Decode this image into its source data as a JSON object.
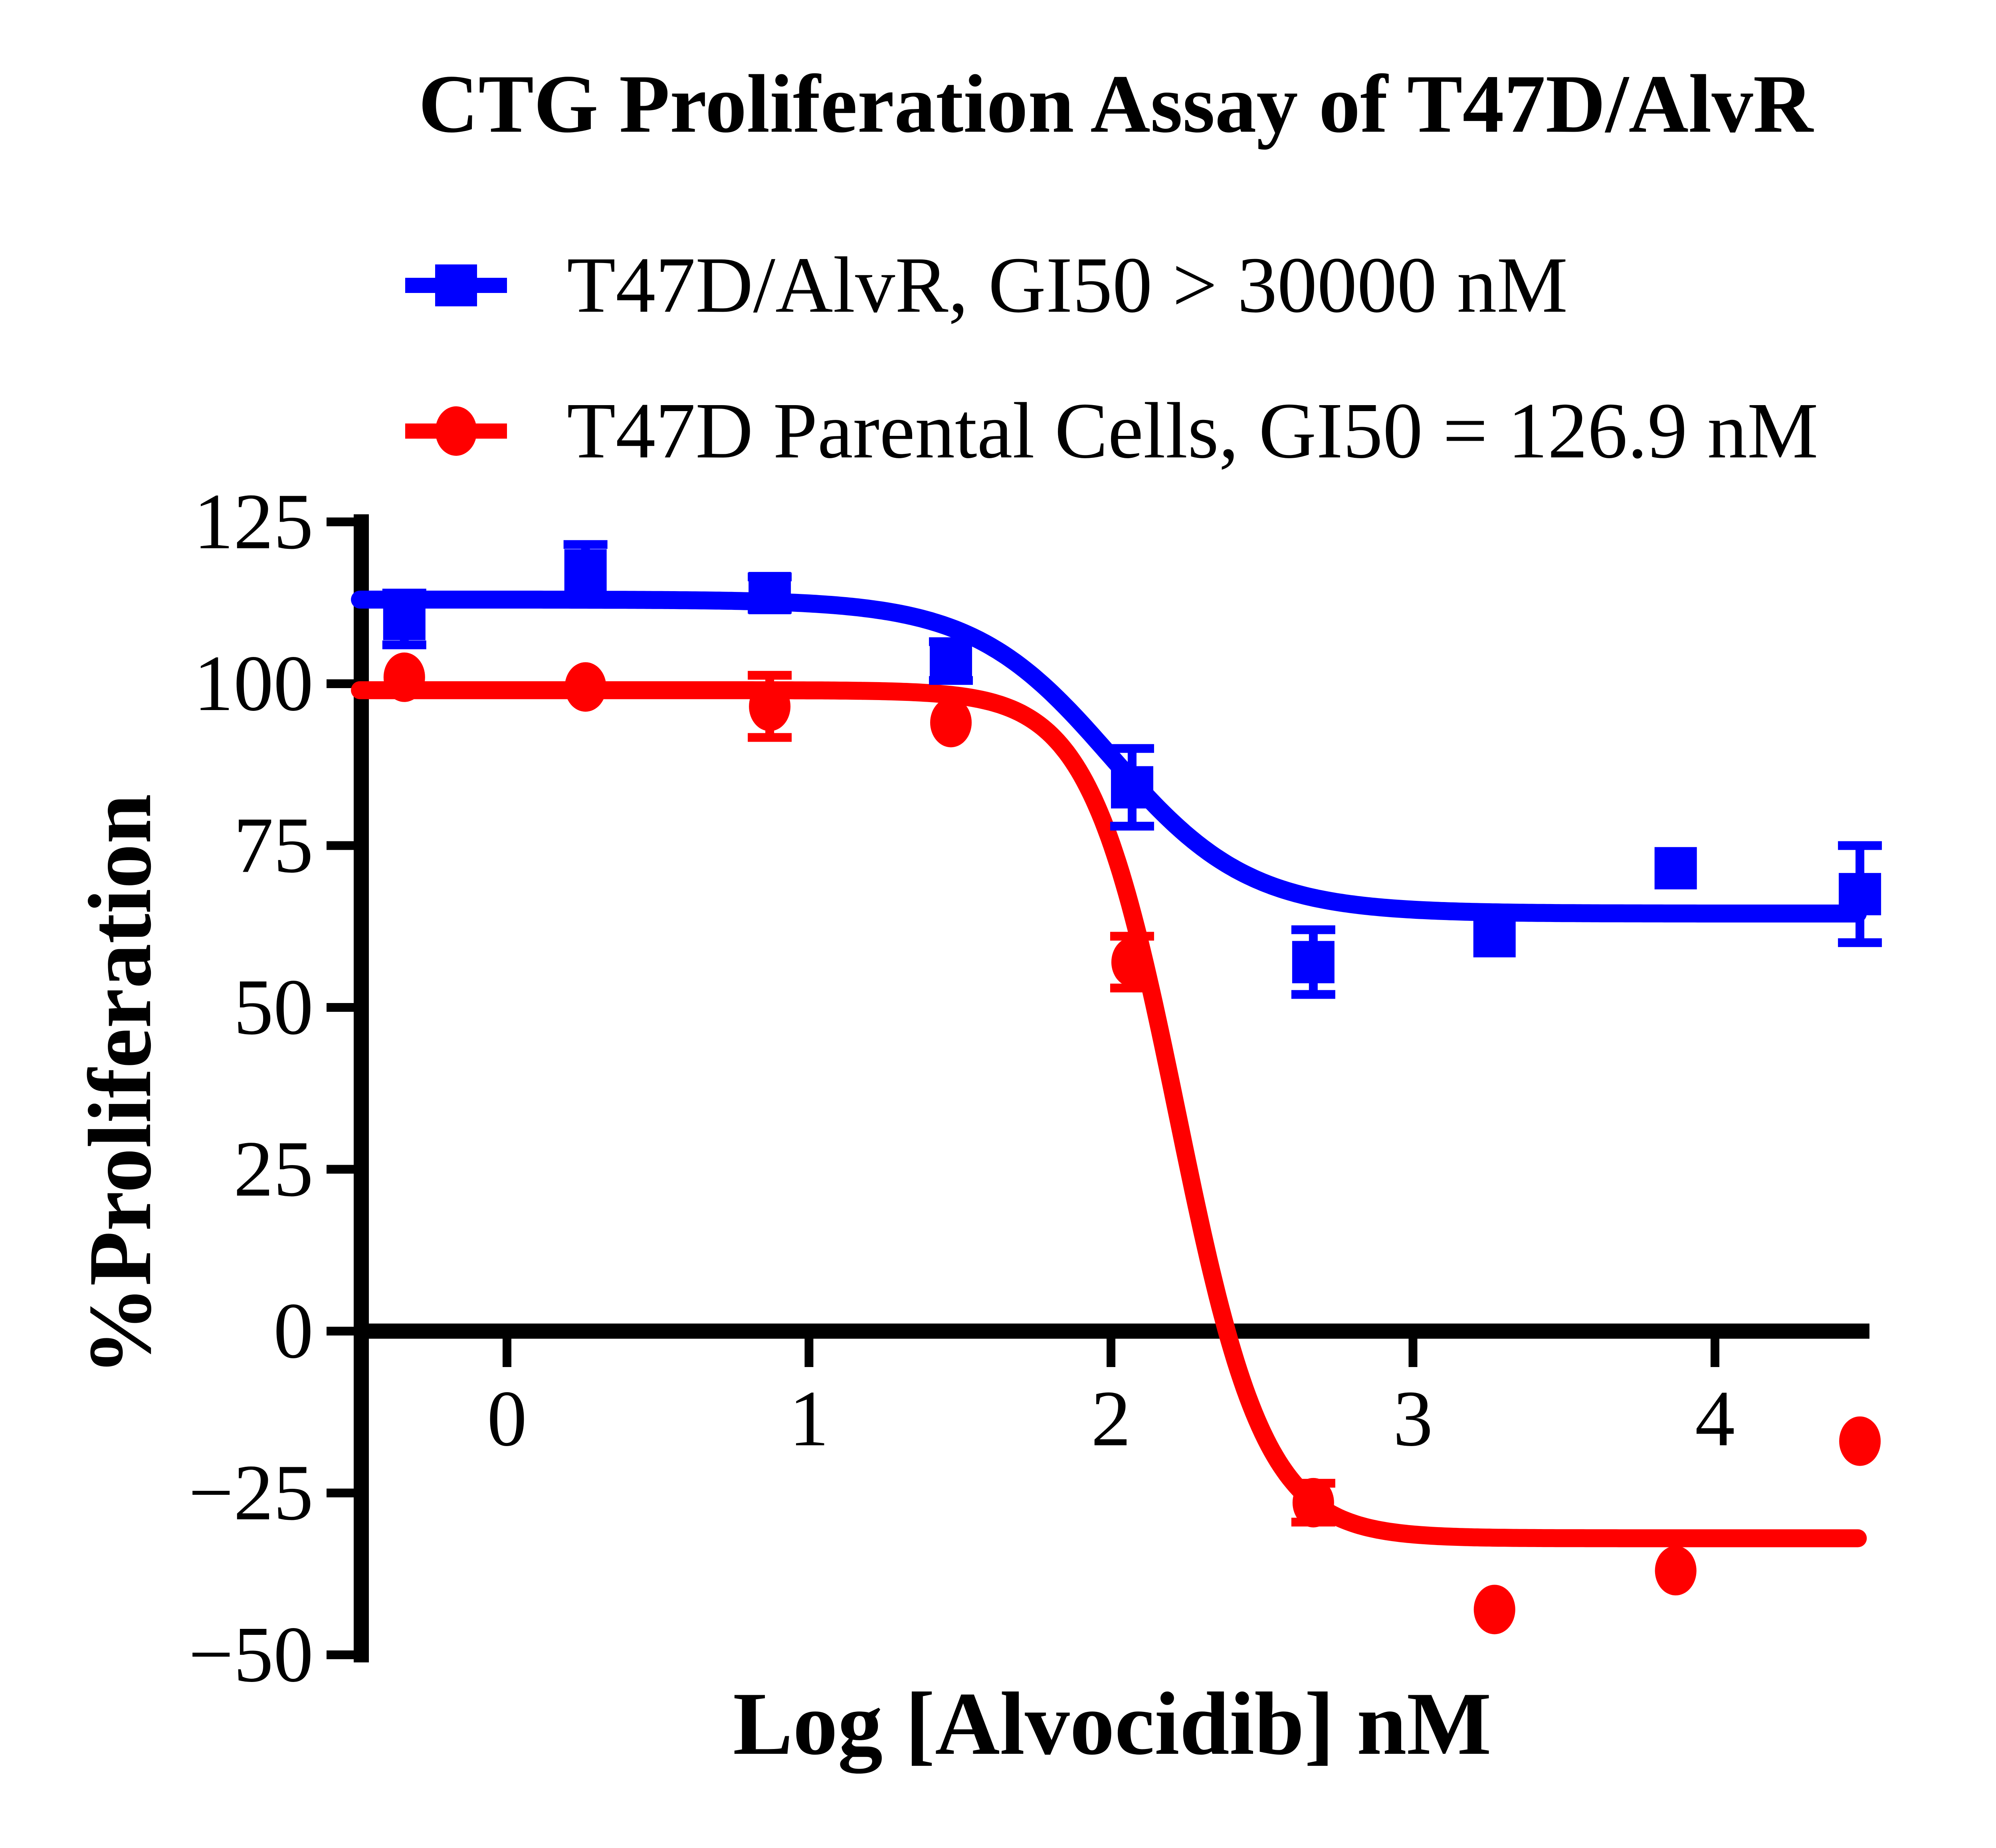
{
  "page": {
    "background": "#FFFFFF"
  },
  "chart_data": {
    "type": "scatter",
    "title": "CTG Proliferation Assay of T47D/AlvR",
    "xlabel": "Log [Alvocidib] nM",
    "ylabel": "%Proliferation",
    "x_tick_values": [
      0,
      1,
      2,
      3,
      4
    ],
    "x_tick_labels": [
      "0",
      "1",
      "2",
      "3",
      "4"
    ],
    "y_tick_values": [
      125,
      100,
      75,
      50,
      25,
      0,
      -25,
      -50
    ],
    "y_tick_labels": [
      "125",
      "100",
      "75",
      "50",
      "25",
      "0",
      "−25",
      "−50"
    ],
    "xlim": [
      -0.49,
      4.52
    ],
    "ylim": [
      -50,
      125
    ],
    "axis_color": "#000000",
    "grid": false,
    "legend_position": "top-left-above-plot",
    "series": [
      {
        "name": "T47D/AlvR, GI50 > 30000 nM",
        "color": "#0000FF",
        "marker": "square",
        "x": [
          -0.34,
          0.26,
          0.87,
          1.47,
          2.07,
          2.67,
          3.27,
          3.87,
          4.48
        ],
        "y": [
          110,
          117.5,
          114,
          103.5,
          84,
          57,
          61,
          71.5,
          67.5
        ],
        "err": [
          4,
          4,
          2.5,
          3,
          6,
          5,
          0,
          0,
          7.5
        ],
        "fit": {
          "top": 113,
          "bottom": 64.5,
          "logIC50": 2.0,
          "hill": 1.9
        }
      },
      {
        "name": "T47D Parental Cells, GI50 = 126.9 nM",
        "color": "#FF0000",
        "marker": "circle",
        "x": [
          -0.34,
          0.26,
          0.87,
          1.47,
          2.07,
          2.67,
          3.27,
          3.87,
          4.48
        ],
        "y": [
          101,
          99.5,
          96.5,
          94,
          57,
          -26.5,
          -43,
          -37,
          -17
        ],
        "err": [
          0,
          0,
          4.8,
          0,
          4,
          3,
          0,
          0,
          0
        ],
        "fit": {
          "top": 99,
          "bottom": -32,
          "logIC50": 2.22,
          "hill": 3.0
        }
      }
    ]
  }
}
